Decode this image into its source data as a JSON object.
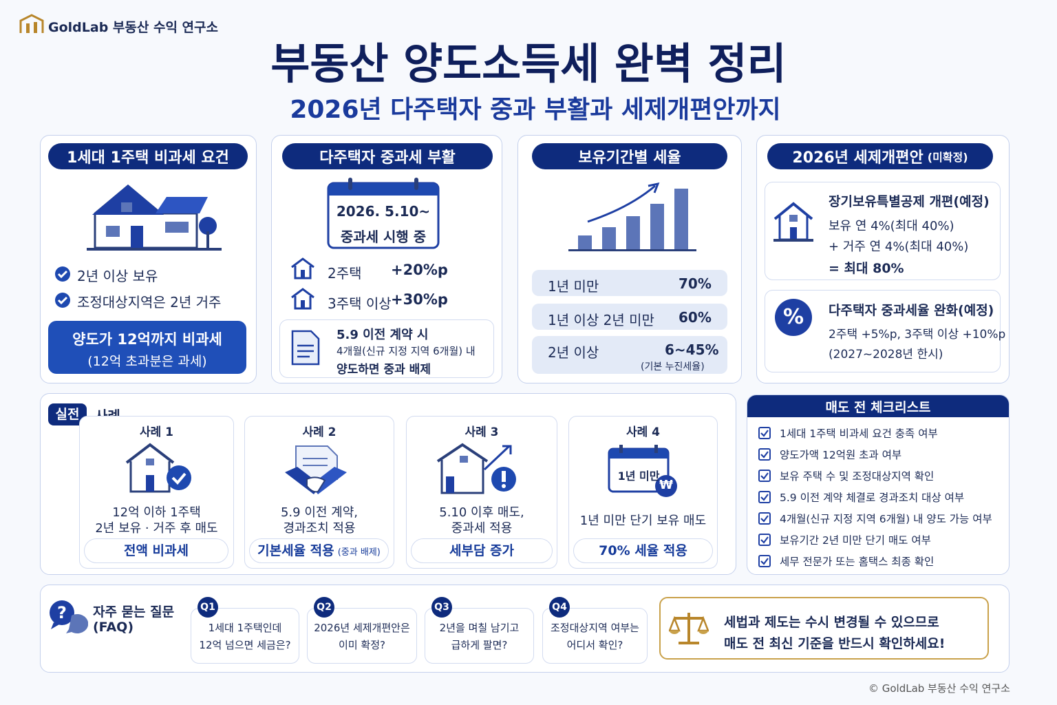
{
  "header": {
    "brand": "GoldLab 부동산 수익 연구소",
    "title": "부동산 양도소득세 완벽 정리",
    "subtitle": "2026년 다주택자 중과 부활과 세제개편안까지"
  },
  "exemption": {
    "title": "1세대 1주택 비과세 요건",
    "checks": [
      "2년 이상 보유",
      "조정대상지역은 2년 거주"
    ],
    "highlight": "양도가 12억까지 비과세",
    "highlight_note": "(12억 초과분은 과세)"
  },
  "heavy_tax": {
    "title": "다주택자 중과세 부활",
    "calendar": [
      "2026. 5.10~",
      "중과세 시행 중"
    ],
    "rates": [
      {
        "label": "2주택",
        "value": "+20%p"
      },
      {
        "label": "3주택 이상",
        "value": "+30%p"
      }
    ],
    "note": {
      "title": "5.9 이전 계약 시",
      "lines": [
        "4개월(신규 지정 지역 6개월) 내",
        "양도하면 중과 배제"
      ]
    }
  },
  "holding": {
    "title": "보유기간별 세율",
    "rows": [
      {
        "period": "1년 미만",
        "rate": "70%"
      },
      {
        "period": "1년 이상 2년 미만",
        "rate": "60%"
      },
      {
        "period": "2년 이상",
        "rate": "6~45%",
        "note": "(기본 누진세율)"
      }
    ]
  },
  "reform": {
    "title": "2026년 세제개편안",
    "title_note": "(미확정)",
    "items": [
      {
        "title": "장기보유특별공제 개편(예정)",
        "lines": [
          "보유 연 4%(최대 40%)",
          "+ 거주 연 4%(최대 40%)",
          "= 최대 80%"
        ]
      },
      {
        "icon": "%",
        "title": "다주택자 중과세율 완화(예정)",
        "lines": [
          "2주택 +5%p, 3주택 이상 +10%p",
          "(2027~2028년 한시)"
        ]
      }
    ]
  },
  "cases": {
    "badge": "실전",
    "label": "사례",
    "items": [
      {
        "title": "사례 1",
        "desc": [
          "12억 이하 1주택",
          "2년 보유 · 거주 후 매도"
        ],
        "result": "전액 비과세"
      },
      {
        "title": "사례 2",
        "desc": [
          "5.9 이전 계약,",
          "경과조치 적용"
        ],
        "result": "기본세율 적용",
        "result_note": "(중과 배제)"
      },
      {
        "title": "사례 3",
        "desc": [
          "5.10 이후 매도,",
          "중과세 적용"
        ],
        "result": "세부담 증가"
      },
      {
        "title": "사례 4",
        "icon_text": "1년 미만",
        "icon_symbol": "₩",
        "desc": [
          "1년 미만 단기 보유 매도"
        ],
        "result": "70% 세율 적용"
      }
    ]
  },
  "checklist": {
    "title": "매도 전 체크리스트",
    "items": [
      "1세대 1주택 비과세 요건 충족 여부",
      "양도가액 12억원 초과 여부",
      "보유 주택 수 및 조정대상지역 확인",
      "5.9 이전 계약 체결로 경과조치 대상 여부",
      "4개월(신규 지정 지역 6개월) 내 양도 가능 여부",
      "보유기간 2년 미만 단기 매도 여부",
      "세무 전문가 또는 홈택스 최종 확인"
    ]
  },
  "faq": {
    "title": "자주 묻는 질문",
    "subtitle": "(FAQ)",
    "items": [
      {
        "q": "Q1",
        "lines": [
          "1세대 1주택인데",
          "12억 넘으면 세금은?"
        ]
      },
      {
        "q": "Q2",
        "lines": [
          "2026년 세제개편안은",
          "이미 확정?"
        ]
      },
      {
        "q": "Q3",
        "lines": [
          "2년을 며칠 남기고",
          "급하게 팔면?"
        ]
      },
      {
        "q": "Q4",
        "lines": [
          "조정대상지역 여부는",
          "어디서 확인?"
        ]
      }
    ]
  },
  "notice": {
    "lines": [
      "세법과 제도는 수시 변경될 수 있으므로",
      "매도 전 최신 기준을 반드시 확인하세요!"
    ]
  },
  "footer": "© GoldLab 부동산 수익 연구소"
}
